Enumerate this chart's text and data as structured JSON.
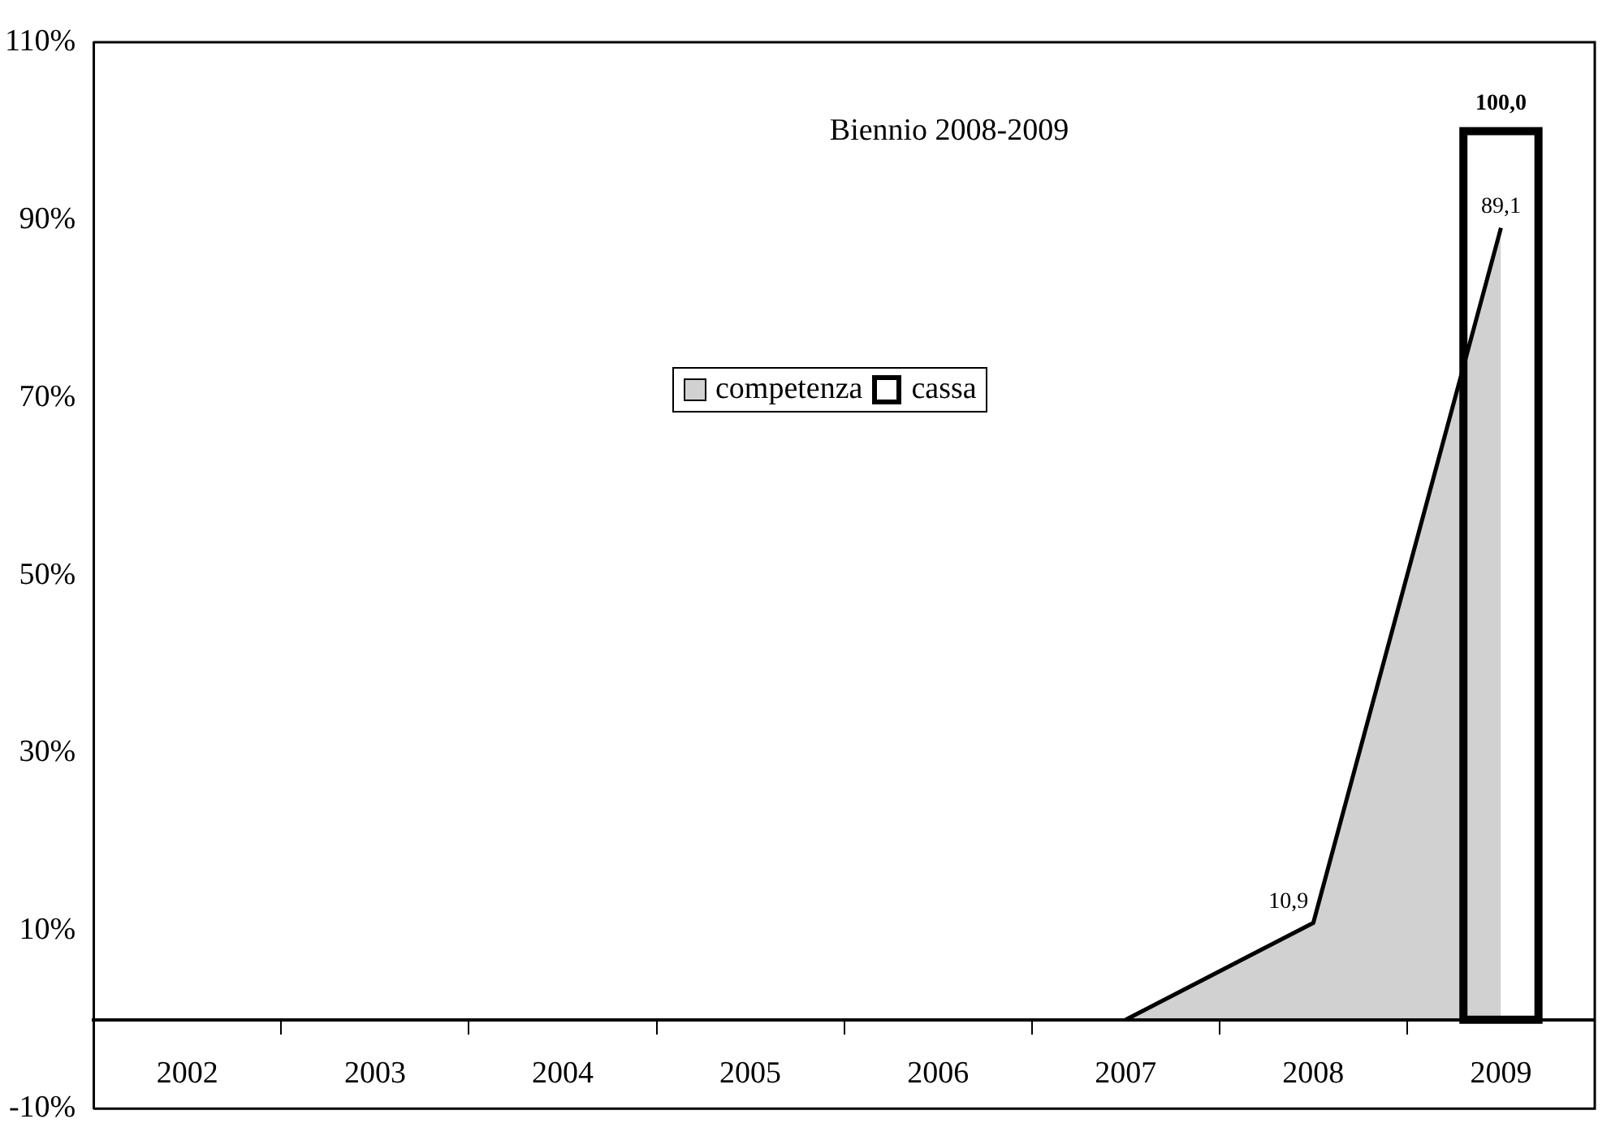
{
  "chart_data": {
    "type": "area",
    "title": "Biennio 2008-2009",
    "categories": [
      "2002",
      "2003",
      "2004",
      "2005",
      "2006",
      "2007",
      "2008",
      "2009"
    ],
    "series": [
      {
        "name": "competenza",
        "color": "#000000",
        "values": [
          null,
          null,
          null,
          null,
          null,
          0,
          10.9,
          89.1
        ],
        "value_labels": [
          null,
          null,
          null,
          null,
          null,
          null,
          "10,9",
          "89,1"
        ]
      },
      {
        "name": "cassa",
        "type": "bar",
        "color": "#000000",
        "values": [
          null,
          null,
          null,
          null,
          null,
          null,
          null,
          100
        ],
        "value_labels": [
          null,
          null,
          null,
          null,
          null,
          null,
          null,
          "100,0"
        ]
      }
    ],
    "ylim": [
      -10,
      110
    ],
    "yticks": [
      {
        "value": -10,
        "label": "-10%"
      },
      {
        "value": 10,
        "label": "10%"
      },
      {
        "value": 30,
        "label": "30%"
      },
      {
        "value": 50,
        "label": "50%"
      },
      {
        "value": 70,
        "label": "70%"
      },
      {
        "value": 90,
        "label": "90%"
      },
      {
        "value": 110,
        "label": "110%"
      }
    ],
    "grid": false,
    "legend": "top"
  }
}
